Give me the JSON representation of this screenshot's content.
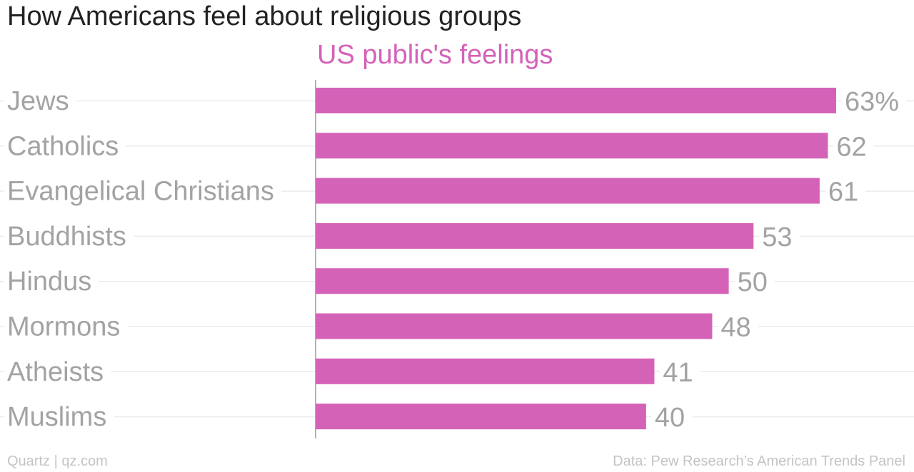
{
  "header": {
    "title": "How Americans feel about religious groups"
  },
  "colors": {
    "bar": "#d463b8",
    "label": "#a3a3a3",
    "grid": "#ebebeb",
    "axis": "#999999"
  },
  "footer": {
    "source_left": "Quartz | qz.com",
    "source_right": "Data: Pew Research’s American Trends Panel"
  },
  "chart_data": {
    "type": "bar",
    "orientation": "horizontal",
    "title": "How Americans feel about religious groups",
    "series": [
      {
        "name": "US public's feelings",
        "values": [
          63,
          62,
          61,
          53,
          50,
          48,
          41,
          40
        ]
      }
    ],
    "categories": [
      "Jews",
      "Catholics",
      "Evangelical Christians",
      "Buddhists",
      "Hindus",
      "Mormons",
      "Atheists",
      "Muslims"
    ],
    "value_labels": [
      "63%",
      "62",
      "61",
      "53",
      "50",
      "48",
      "41",
      "40"
    ],
    "xlim": [
      0,
      63
    ],
    "grid": true,
    "legend": "top"
  }
}
